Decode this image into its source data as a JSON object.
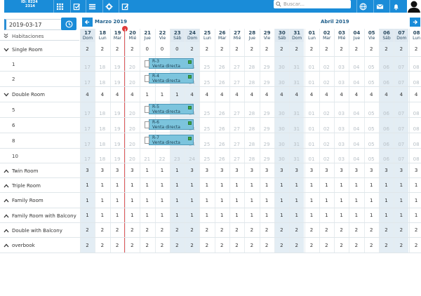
{
  "topbar": {
    "hotel_line1": "ID: 8224",
    "hotel_line2": "2314",
    "search_placeholder": "Buscar..."
  },
  "date_input": {
    "value": "2019-03-17"
  },
  "months": {
    "march": "Marzo 2019",
    "april": "Abril 2019"
  },
  "rooms_header": "Habitaciones",
  "days": [
    {
      "n": "17",
      "w": "Dom"
    },
    {
      "n": "18",
      "w": "Lun"
    },
    {
      "n": "19",
      "w": "Mar"
    },
    {
      "n": "20",
      "w": "Mié"
    },
    {
      "n": "21",
      "w": "Jue"
    },
    {
      "n": "22",
      "w": "Vie"
    },
    {
      "n": "23",
      "w": "Sáb"
    },
    {
      "n": "24",
      "w": "Dom"
    },
    {
      "n": "25",
      "w": "Lun"
    },
    {
      "n": "26",
      "w": "Mar"
    },
    {
      "n": "27",
      "w": "Mié"
    },
    {
      "n": "28",
      "w": "Jue"
    },
    {
      "n": "29",
      "w": "Vie"
    },
    {
      "n": "30",
      "w": "Sáb"
    },
    {
      "n": "31",
      "w": "Dom"
    },
    {
      "n": "01",
      "w": "Lun"
    },
    {
      "n": "02",
      "w": "Mar"
    },
    {
      "n": "03",
      "w": "Mié"
    },
    {
      "n": "04",
      "w": "Jue"
    },
    {
      "n": "05",
      "w": "Vie"
    },
    {
      "n": "06",
      "w": "Sáb"
    },
    {
      "n": "07",
      "w": "Dom"
    },
    {
      "n": "08",
      "w": "Lun"
    }
  ],
  "rows": [
    {
      "type": "cat",
      "label": "Single Room",
      "vals": [
        "2",
        "2",
        "2",
        "2",
        "0",
        "0",
        "0",
        "2",
        "2",
        "2",
        "2",
        "2",
        "2",
        "2",
        "2",
        "2",
        "2",
        "2",
        "2",
        "2",
        "2",
        "2",
        "2"
      ]
    },
    {
      "type": "room",
      "label": "1",
      "grey": [
        "17",
        "18",
        "19",
        "20",
        "",
        "",
        "",
        "24",
        "25",
        "26",
        "27",
        "28",
        "29",
        "30",
        "31",
        "01",
        "02",
        "03",
        "04",
        "05",
        "06",
        "07",
        "08"
      ]
    },
    {
      "type": "room",
      "label": "2",
      "grey": [
        "17",
        "18",
        "19",
        "20",
        "",
        "",
        "",
        "24",
        "25",
        "26",
        "27",
        "28",
        "29",
        "30",
        "31",
        "01",
        "02",
        "03",
        "04",
        "05",
        "06",
        "07",
        "08"
      ]
    },
    {
      "type": "cat",
      "label": "Double Room",
      "vals": [
        "4",
        "4",
        "4",
        "4",
        "1",
        "1",
        "1",
        "4",
        "4",
        "4",
        "4",
        "4",
        "4",
        "4",
        "4",
        "4",
        "4",
        "4",
        "4",
        "4",
        "4",
        "4",
        "4"
      ]
    },
    {
      "type": "room",
      "label": "5",
      "grey": [
        "17",
        "18",
        "19",
        "20",
        "",
        "",
        "",
        "24",
        "25",
        "26",
        "27",
        "28",
        "29",
        "30",
        "31",
        "01",
        "02",
        "03",
        "04",
        "05",
        "06",
        "07",
        "08"
      ]
    },
    {
      "type": "room",
      "label": "6",
      "grey": [
        "17",
        "18",
        "19",
        "20",
        "",
        "",
        "",
        "24",
        "25",
        "26",
        "27",
        "28",
        "29",
        "30",
        "31",
        "01",
        "02",
        "03",
        "04",
        "05",
        "06",
        "07",
        "08"
      ]
    },
    {
      "type": "room",
      "label": "8",
      "grey": [
        "17",
        "18",
        "19",
        "20",
        "",
        "",
        "",
        "24",
        "25",
        "26",
        "27",
        "28",
        "29",
        "30",
        "31",
        "01",
        "02",
        "03",
        "04",
        "05",
        "06",
        "07",
        "08"
      ]
    },
    {
      "type": "room",
      "label": "10",
      "grey": [
        "17",
        "18",
        "19",
        "20",
        "21",
        "22",
        "23",
        "24",
        "25",
        "26",
        "27",
        "28",
        "29",
        "30",
        "31",
        "01",
        "02",
        "03",
        "04",
        "05",
        "06",
        "07",
        "08"
      ]
    },
    {
      "type": "cat",
      "label": "Twin Room",
      "vals": [
        "3",
        "3",
        "3",
        "3",
        "1",
        "1",
        "1",
        "3",
        "3",
        "3",
        "3",
        "3",
        "3",
        "3",
        "3",
        "3",
        "3",
        "3",
        "3",
        "3",
        "3",
        "3",
        "3"
      ]
    },
    {
      "type": "cat",
      "label": "Triple Room",
      "vals": [
        "1",
        "1",
        "1",
        "1",
        "1",
        "1",
        "1",
        "1",
        "1",
        "1",
        "1",
        "1",
        "1",
        "1",
        "1",
        "1",
        "1",
        "1",
        "1",
        "1",
        "1",
        "1",
        "1"
      ]
    },
    {
      "type": "cat",
      "label": "Family Room",
      "vals": [
        "1",
        "1",
        "1",
        "1",
        "1",
        "1",
        "1",
        "1",
        "1",
        "1",
        "1",
        "1",
        "1",
        "1",
        "1",
        "1",
        "1",
        "1",
        "1",
        "1",
        "1",
        "1",
        "1"
      ]
    },
    {
      "type": "cat",
      "label": "Family Room with Balcony",
      "vals": [
        "1",
        "1",
        "1",
        "1",
        "1",
        "1",
        "1",
        "1",
        "1",
        "1",
        "1",
        "1",
        "1",
        "1",
        "1",
        "1",
        "1",
        "1",
        "1",
        "1",
        "1",
        "1",
        "1"
      ]
    },
    {
      "type": "cat",
      "label": "Double with Balcony",
      "vals": [
        "2",
        "2",
        "2",
        "2",
        "2",
        "2",
        "2",
        "2",
        "2",
        "2",
        "2",
        "2",
        "2",
        "2",
        "2",
        "2",
        "2",
        "2",
        "2",
        "2",
        "2",
        "2",
        "2"
      ]
    },
    {
      "type": "cat",
      "label": "overbook",
      "vals": [
        "2",
        "2",
        "2",
        "2",
        "2",
        "2",
        "2",
        "2",
        "2",
        "2",
        "2",
        "2",
        "2",
        "2",
        "2",
        "2",
        "2",
        "2",
        "2",
        "2",
        "2",
        "2",
        "2"
      ]
    }
  ],
  "reservations": [
    {
      "id": "R-3",
      "source": "Venta directa",
      "row": 1
    },
    {
      "id": "R-4",
      "source": "Venta directa",
      "row": 2
    },
    {
      "id": "R-5",
      "source": "Venta directa",
      "row": 4
    },
    {
      "id": "R-6",
      "source": "Venta directa",
      "row": 5
    },
    {
      "id": "R-7",
      "source": "Venta directa",
      "row": 6
    }
  ]
}
